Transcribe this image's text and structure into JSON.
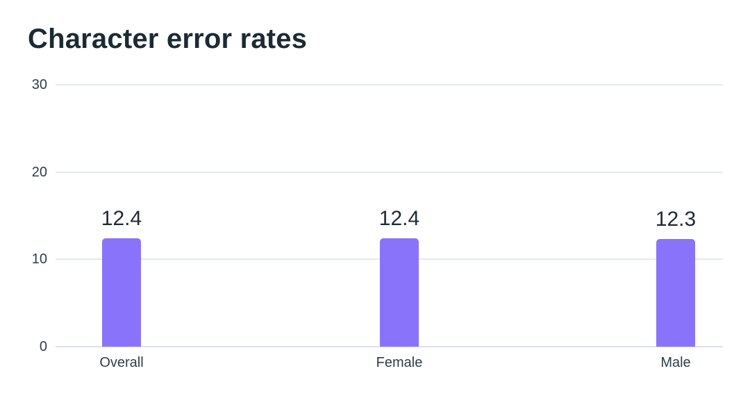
{
  "chart_data": {
    "type": "bar",
    "title": "Character error rates",
    "categories": [
      "Overall",
      "Female",
      "Male"
    ],
    "values": [
      12.4,
      12.4,
      12.3
    ],
    "value_labels": [
      "12.4",
      "12.4",
      "12.3"
    ],
    "xlabel": "",
    "ylabel": "",
    "ylim": [
      0,
      30
    ],
    "yticks": [
      0,
      10,
      20,
      30
    ],
    "grid": "horizontal",
    "legend": "none",
    "colors": {
      "bar": "#8a73fb",
      "grid": "#e4e9ef",
      "axis_line": "#dde3ea",
      "title_text": "#1c2b33",
      "tick_text": "#2e3d47",
      "background": "#ffffff"
    }
  }
}
